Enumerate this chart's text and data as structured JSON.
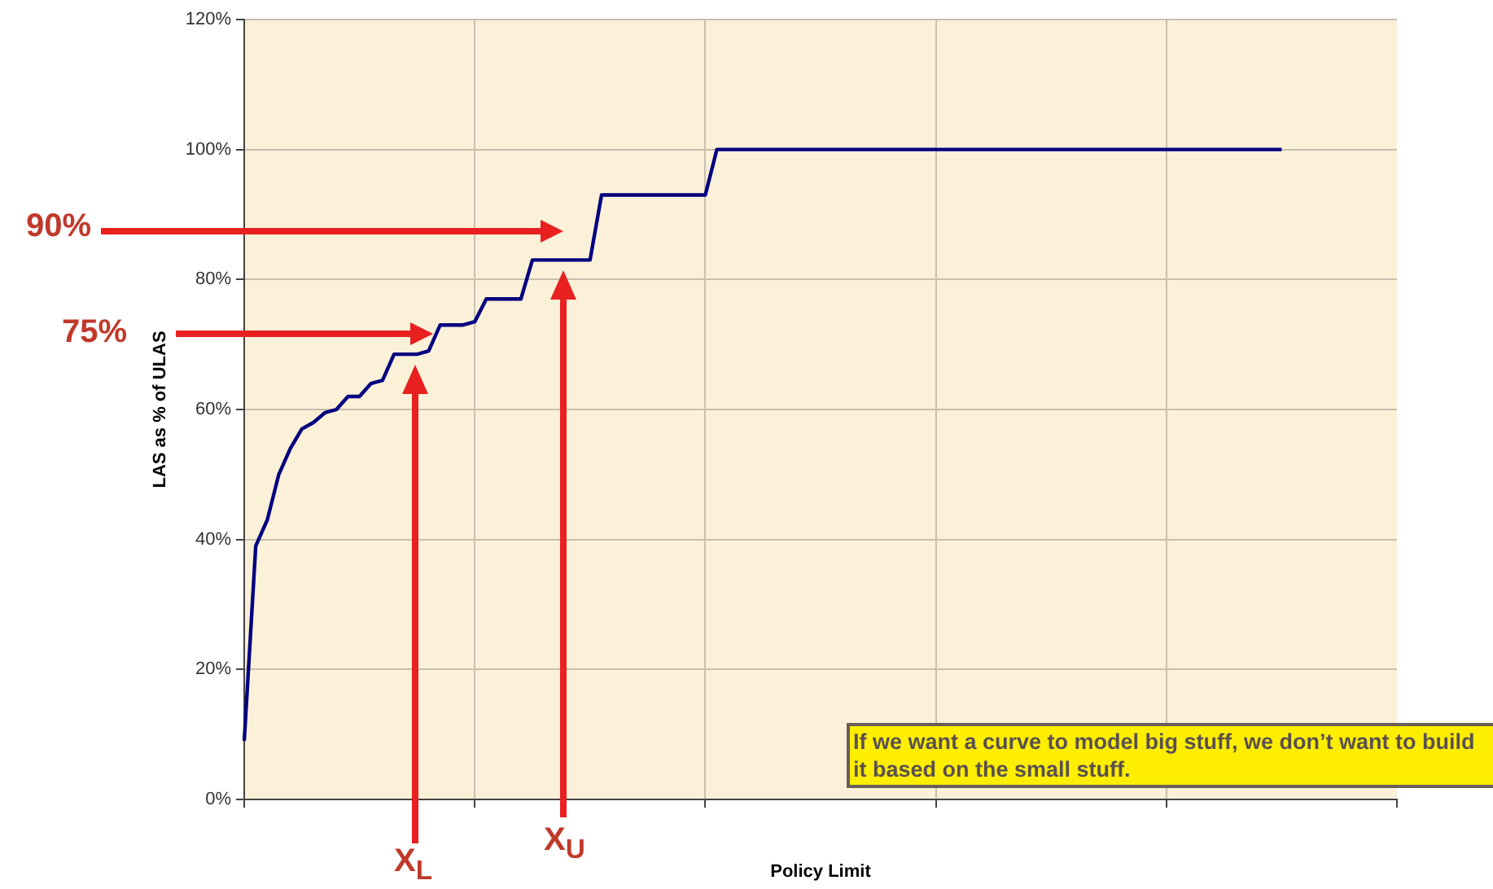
{
  "chart_data": {
    "type": "line",
    "ylabel": "LAS as % of ULAS",
    "xlabel": "Policy Limit",
    "categories": [
      null,
      null,
      null,
      null,
      null,
      null,
      null,
      null,
      null,
      null,
      null,
      null,
      null,
      null,
      null,
      null,
      null,
      null,
      null,
      null,
      null,
      null,
      null,
      null,
      null,
      null,
      null,
      null,
      null,
      null,
      null,
      null,
      null,
      null,
      null,
      null,
      null,
      null,
      null,
      null,
      null,
      null,
      null,
      null,
      null,
      null,
      null,
      null,
      null,
      null,
      null,
      null,
      null,
      null,
      null,
      null,
      null,
      null,
      null,
      null,
      null,
      null,
      null,
      null,
      null,
      null,
      null,
      null,
      null,
      null,
      null,
      null,
      null,
      null,
      null,
      null,
      null,
      null,
      null,
      null,
      null,
      null,
      null,
      null,
      null,
      null,
      null,
      null,
      null,
      null,
      null,
      null,
      null,
      null,
      null,
      null,
      null,
      null,
      null,
      null,
      null
    ],
    "series": [
      {
        "color": "#000080",
        "values": [
          9,
          39,
          43,
          50,
          54,
          57,
          58,
          59.5,
          60,
          62,
          62,
          64,
          64.5,
          68.5,
          68.5,
          68.5,
          69,
          73,
          73,
          73,
          73.5,
          77,
          77,
          77,
          77,
          83,
          83,
          83,
          83,
          83,
          83,
          93,
          93,
          93,
          93,
          93,
          93,
          93,
          93,
          93,
          93,
          100,
          100,
          100,
          100,
          100,
          100,
          100,
          100,
          100,
          100,
          100,
          100,
          100,
          100,
          100,
          100,
          100,
          100,
          100,
          100,
          100,
          100,
          100,
          100,
          100,
          100,
          100,
          100,
          100,
          100,
          100,
          100,
          100,
          100,
          100,
          100,
          100,
          100,
          100,
          100,
          100,
          100,
          100,
          100,
          100,
          100,
          100,
          100,
          100,
          100,
          null,
          null,
          null,
          null,
          null,
          null,
          null,
          null,
          null,
          null
        ]
      }
    ],
    "ylim": [
      0,
      120
    ],
    "yticks": [
      {
        "value": 0,
        "label": "0%"
      },
      {
        "value": 20,
        "label": "20%"
      },
      {
        "value": 40,
        "label": "40%"
      },
      {
        "value": 60,
        "label": "60%"
      },
      {
        "value": 80,
        "label": "80%"
      },
      {
        "value": 100,
        "label": "100%"
      },
      {
        "value": 120,
        "label": "120%"
      }
    ],
    "grid": true,
    "legend": false,
    "marker": "none",
    "line_style": "solid",
    "tick_labels": "y",
    "annotations": [
      "90%",
      "75%",
      "X$_{L}$",
      "X$_{U}$",
      "If we want a curve to model big stuff, we don’t want to build it based on the small stuff."
    ]
  }
}
